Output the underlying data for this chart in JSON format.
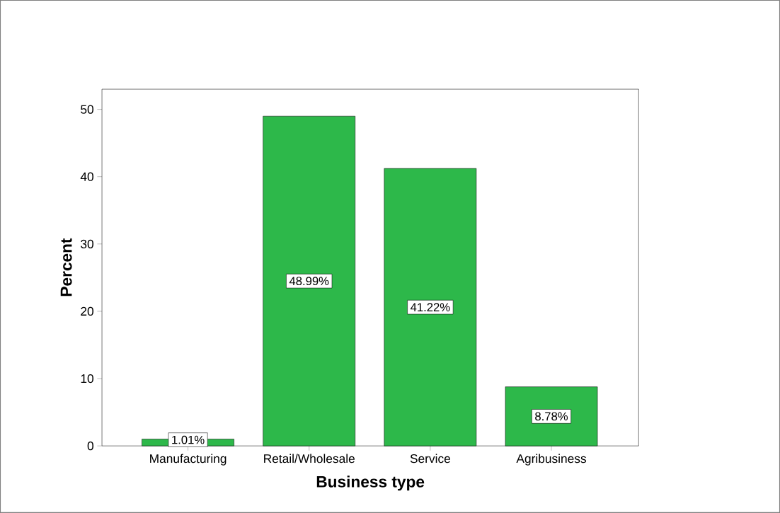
{
  "chart_data": {
    "type": "bar",
    "xlabel": "Business type",
    "ylabel": "Percent",
    "categories": [
      "Manufacturing",
      "Retail/Wholesale",
      "Service",
      "Agribusiness"
    ],
    "values": [
      1.01,
      48.99,
      41.22,
      8.78
    ],
    "value_labels": [
      "1.01%",
      "48.99%",
      "41.22%",
      "8.78%"
    ],
    "color": "#2db84a",
    "ylim": [
      0,
      53
    ],
    "yticks": [
      0,
      10,
      20,
      30,
      40,
      50
    ]
  }
}
